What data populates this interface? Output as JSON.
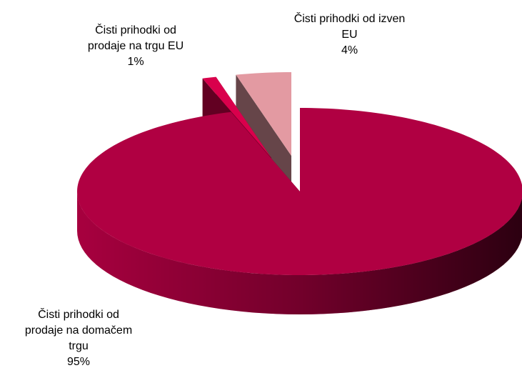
{
  "chart_data": {
    "type": "pie3d",
    "categories": [
      "Čisti prihodki od prodaje na domačem trgu",
      "Čisti prihodki od prodaje na trgu EU",
      "Čisti prihodki od izven EU"
    ],
    "values": [
      95,
      1,
      4
    ],
    "value_labels": [
      "95%",
      "1%",
      "4%"
    ],
    "colors": [
      "#b00042",
      "#d9004c",
      "#e39aa2"
    ]
  }
}
